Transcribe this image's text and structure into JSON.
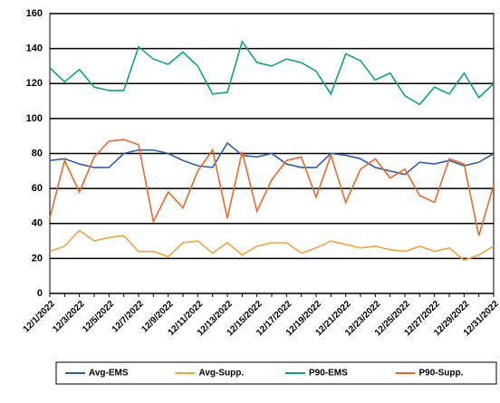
{
  "chart_data": {
    "type": "line",
    "categories": [
      "12/1/2022",
      null,
      "12/3/2022",
      null,
      "12/5/2022",
      null,
      "12/7/2022",
      null,
      "12/9/2022",
      null,
      "12/11/2022",
      null,
      "12/13/2022",
      null,
      "12/15/2022",
      null,
      "12/17/2022",
      null,
      "12/19/2022",
      null,
      "12/21/2022",
      null,
      "12/23/2022",
      null,
      "12/25/2022",
      null,
      "12/27/2022",
      null,
      "12/29/2022",
      null,
      "12/31/2022"
    ],
    "series": [
      {
        "name": "Avg-EMS",
        "color": "#2e5fa8",
        "values": [
          76,
          77,
          74,
          72,
          72,
          80,
          82,
          82,
          80,
          76,
          73,
          72,
          86,
          79,
          78,
          80,
          74,
          72,
          72,
          80,
          79,
          77,
          72,
          70,
          68,
          75,
          74,
          76,
          73,
          75,
          80
        ]
      },
      {
        "name": "Avg-Supp.",
        "color": "#f4a340",
        "values": [
          24,
          27,
          36,
          30,
          32,
          33,
          24,
          24,
          21,
          29,
          30,
          23,
          29,
          22,
          27,
          29,
          29,
          23,
          26,
          30,
          28,
          26,
          27,
          25,
          24,
          27,
          24,
          26,
          19,
          22,
          27
        ]
      },
      {
        "name": "P90-EMS",
        "color": "#10a37f",
        "values": [
          129,
          121,
          128,
          118,
          116,
          116,
          141,
          134,
          131,
          138,
          130,
          114,
          115,
          144,
          132,
          130,
          134,
          132,
          127,
          114,
          137,
          133,
          122,
          126,
          113,
          108,
          118,
          114,
          126,
          112,
          120
        ]
      },
      {
        "name": "P90-Supp.",
        "color": "#e86a2a",
        "values": [
          43,
          76,
          58,
          78,
          87,
          88,
          85,
          41,
          58,
          49,
          70,
          82,
          43,
          81,
          47,
          65,
          76,
          78,
          55,
          79,
          52,
          71,
          77,
          66,
          71,
          56,
          52,
          77,
          74,
          33,
          62
        ]
      }
    ],
    "ylim": [
      0,
      160
    ],
    "yticks": [
      0,
      20,
      40,
      60,
      80,
      100,
      120,
      140,
      160
    ],
    "grid": true,
    "legend": "bottom"
  }
}
